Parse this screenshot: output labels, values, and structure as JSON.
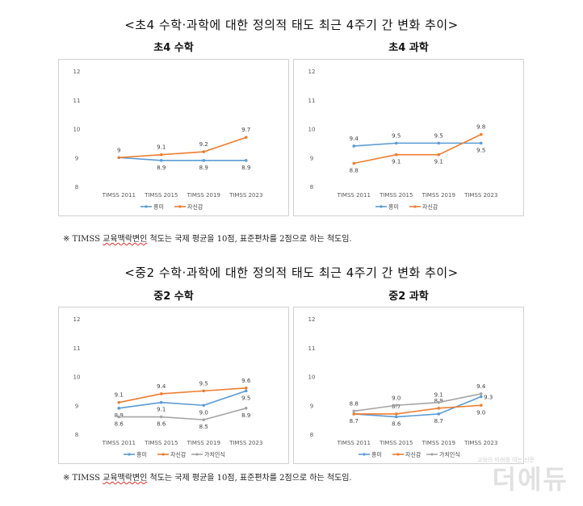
{
  "sections": [
    {
      "title": "<초4 수학·과학에 대한 정의적 태도 최근 4주기 간 변화 추이>",
      "note": {
        "prefix": "※ TIMSS ",
        "underlined": "교육맥락변인",
        "suffix": " 척도는 국제 평균을 10점, 표준편차를 2점으로 하는 척도임."
      }
    },
    {
      "title": "<중2 수학·과학에 대한 정의적 태도 최근 4주기 간 변화 추이>",
      "note": {
        "prefix": "※ TIMSS ",
        "underlined": "교육맥락변인",
        "suffix": " 척도는 국제 평균을 10점, 표준편차를 2점으로 하는 척도임."
      }
    }
  ],
  "watermark": "더에듀",
  "watermark_small": "교육의 미래를 여는 신문",
  "colors": {
    "interest": "#5b9bd5",
    "confidence": "#ed7d31",
    "value": "#a5a5a5"
  },
  "chart_data": [
    {
      "type": "line",
      "title": "초4 수학",
      "categories": [
        "TIMSS 2011",
        "TIMSS 2015",
        "TIMSS 2019",
        "TIMSS 2023"
      ],
      "ylim": [
        8,
        12
      ],
      "yticks": [
        "8",
        "9",
        "10",
        "11",
        "12"
      ],
      "grid": false,
      "legend": "bottom",
      "series": [
        {
          "name": "흥미",
          "values": [
            9.0,
            8.9,
            8.9,
            8.9
          ],
          "labels": [
            "",
            "8.9",
            "8.9",
            "8.9"
          ],
          "label_pos": "below",
          "color": "#5b9bd5"
        },
        {
          "name": "자신감",
          "values": [
            9.0,
            9.1,
            9.2,
            9.7
          ],
          "labels": [
            "9",
            "9.1",
            "9.2",
            "9.7"
          ],
          "label_pos": "above",
          "color": "#ed7d31"
        }
      ]
    },
    {
      "type": "line",
      "title": "초4 과학",
      "categories": [
        "TIMSS 2011",
        "TIMSS 2015",
        "TIMSS 2019",
        "TIMSS 2023"
      ],
      "ylim": [
        8,
        12
      ],
      "yticks": [
        "8",
        "9",
        "10",
        "11",
        "12"
      ],
      "grid": false,
      "legend": "bottom",
      "series": [
        {
          "name": "흥미",
          "values": [
            9.4,
            9.5,
            9.5,
            9.5
          ],
          "labels": [
            "9.4",
            "9.5",
            "9.5",
            "9.5"
          ],
          "label_pos": "above_last_below",
          "color": "#5b9bd5"
        },
        {
          "name": "자신감",
          "values": [
            8.8,
            9.1,
            9.1,
            9.8
          ],
          "labels": [
            "8.8",
            "9.1",
            "9.1",
            "9.8"
          ],
          "label_pos": "below_last_above",
          "color": "#ed7d31"
        }
      ]
    },
    {
      "type": "line",
      "title": "중2 수학",
      "categories": [
        "TIMSS 2011",
        "TIMSS 2015",
        "TIMSS 2019",
        "TIMSS 2023"
      ],
      "ylim": [
        8,
        12
      ],
      "yticks": [
        "8",
        "9",
        "10",
        "11",
        "12"
      ],
      "grid": false,
      "legend": "bottom",
      "series": [
        {
          "name": "흥미",
          "values": [
            8.9,
            9.1,
            9.0,
            9.5
          ],
          "labels": [
            "8.9",
            "9.1",
            "9.0",
            "9.5"
          ],
          "label_pos": "below",
          "color": "#5b9bd5"
        },
        {
          "name": "자신감",
          "values": [
            9.1,
            9.4,
            9.5,
            9.6
          ],
          "labels": [
            "9.1",
            "9.4",
            "9.5",
            "9.6"
          ],
          "label_pos": "above",
          "color": "#ed7d31"
        },
        {
          "name": "가치인식",
          "values": [
            8.6,
            8.6,
            8.5,
            8.9
          ],
          "labels": [
            "8.6",
            "8.6",
            "8.5",
            "8.9"
          ],
          "label_pos": "below",
          "color": "#a5a5a5"
        }
      ]
    },
    {
      "type": "line",
      "title": "중2 과학",
      "categories": [
        "TIMSS 2011",
        "TIMSS 2015",
        "TIMSS 2019",
        "TIMSS 2023"
      ],
      "ylim": [
        8,
        12
      ],
      "yticks": [
        "8",
        "9",
        "10",
        "11",
        "12"
      ],
      "grid": false,
      "legend": "bottom",
      "series": [
        {
          "name": "흥미",
          "values": [
            8.7,
            8.6,
            8.7,
            9.3
          ],
          "labels": [
            "8.7",
            "8.6",
            "8.7",
            "9.3"
          ],
          "label_pos": "below_last_right",
          "color": "#5b9bd5"
        },
        {
          "name": "자신감",
          "values": [
            8.7,
            8.7,
            8.9,
            9.0
          ],
          "labels": [
            "",
            "8.7",
            "8.9",
            "9.0"
          ],
          "label_pos": "above_last_below",
          "color": "#ed7d31"
        },
        {
          "name": "가치인식",
          "values": [
            8.8,
            9.0,
            9.1,
            9.4
          ],
          "labels": [
            "8.8",
            "9.0",
            "9.1",
            "9.4"
          ],
          "label_pos": "above",
          "color": "#a5a5a5"
        }
      ]
    }
  ]
}
